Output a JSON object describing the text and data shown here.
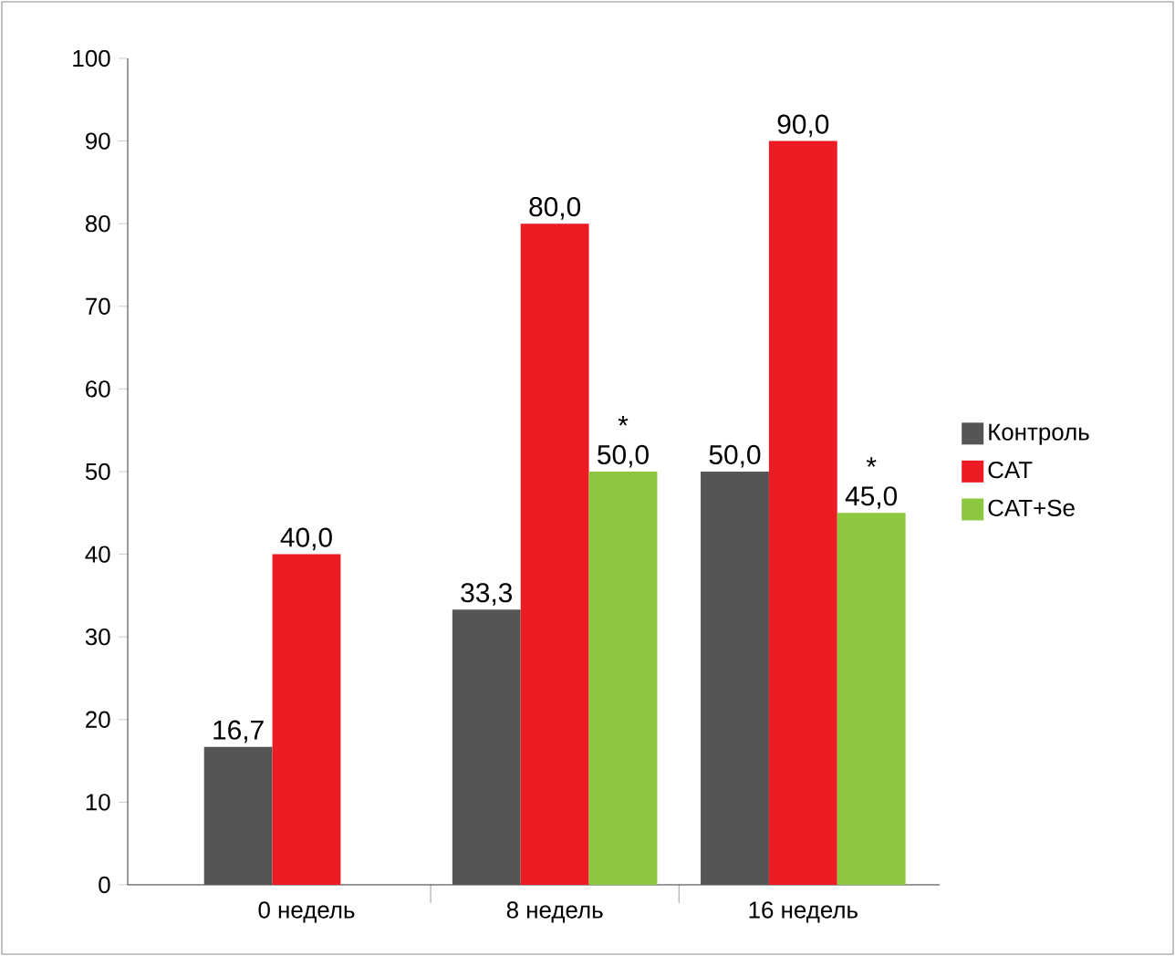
{
  "chart_data": {
    "type": "bar",
    "categories": [
      "0 недель",
      "8 недель",
      "16 недель"
    ],
    "series": [
      {
        "name": "Контроль",
        "color": "#555555",
        "values": [
          16.7,
          33.3,
          50.0
        ],
        "value_labels": [
          "16,7",
          "33,3",
          "50,0"
        ]
      },
      {
        "name": "CAT",
        "color": "#ed1c24",
        "values": [
          40.0,
          80.0,
          90.0
        ],
        "value_labels": [
          "40,0",
          "80,0",
          "90,0"
        ]
      },
      {
        "name": "CAT+Se",
        "color": "#8dc63f",
        "values": [
          null,
          50.0,
          45.0
        ],
        "value_labels": [
          null,
          "50,0",
          "45,0"
        ]
      }
    ],
    "ylim": [
      0,
      100
    ],
    "yticks": [
      0,
      10,
      20,
      30,
      40,
      50,
      60,
      70,
      80,
      90,
      100
    ],
    "grid": false,
    "legend": "right",
    "annotations": [
      "*",
      "*"
    ]
  }
}
